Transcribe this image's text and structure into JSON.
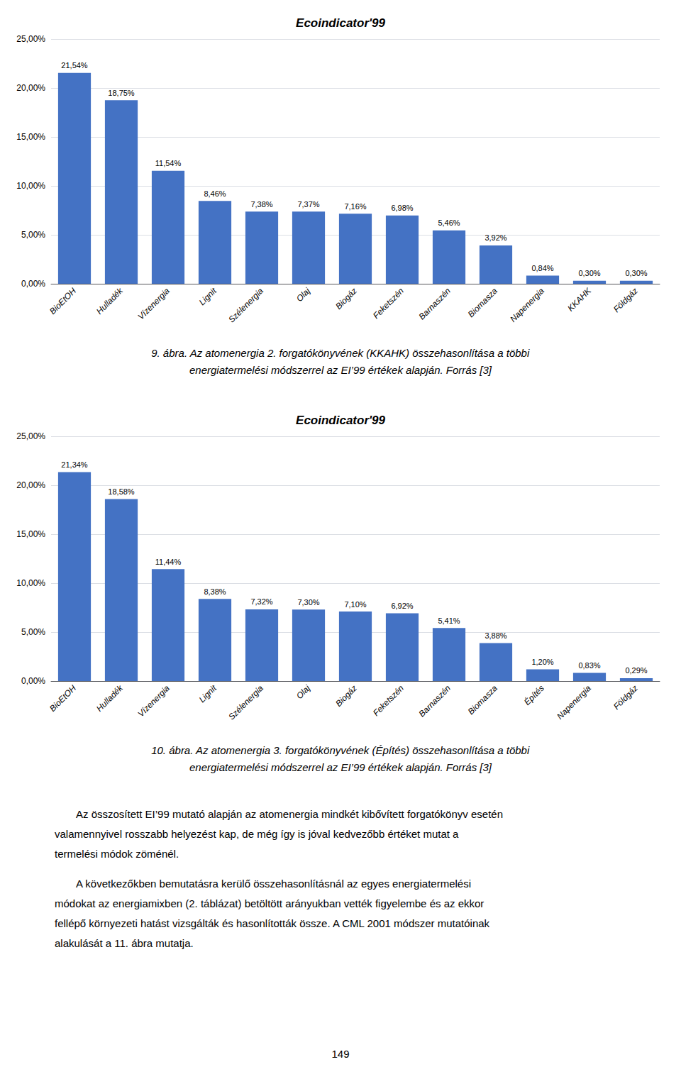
{
  "chart_data": [
    {
      "type": "bar",
      "title": "Ecoindicator'99",
      "categories": [
        "BioEtOH",
        "Hulladék",
        "Vízenergia",
        "Lignit",
        "Szélenergia",
        "Olaj",
        "Biogáz",
        "Feketszén",
        "Barnaszén",
        "Biomasza",
        "Napenergia",
        "KKAHK",
        "Földgáz"
      ],
      "values": [
        21.54,
        18.75,
        11.54,
        8.46,
        7.38,
        7.37,
        7.16,
        6.98,
        5.46,
        3.92,
        0.84,
        0.3,
        0.3
      ],
      "value_labels": [
        "21,54%",
        "18,75%",
        "11,54%",
        "8,46%",
        "7,38%",
        "7,37%",
        "7,16%",
        "6,98%",
        "5,46%",
        "3,92%",
        "0,84%",
        "0,30%",
        "0,30%"
      ],
      "data_labels": true,
      "color": "#4472C4",
      "ylim": [
        0,
        25
      ],
      "yticks": [
        {
          "value": 0,
          "label": "0,00%"
        },
        {
          "value": 5,
          "label": "5,00%"
        },
        {
          "value": 10,
          "label": "10,00%"
        },
        {
          "value": 15,
          "label": "15,00%"
        },
        {
          "value": 20,
          "label": "20,00%"
        },
        {
          "value": 25,
          "label": "25,00%"
        }
      ],
      "grid": true,
      "annotations": [
        "9. ábra. Az atomenergia 2. forgatókönyvének (KKAHK) összehasonlítása a többi",
        "energiatermelési módszerrel az EI’99 értékek alapján. Forrás [3]"
      ]
    },
    {
      "type": "bar",
      "title": "Ecoindicator'99",
      "categories": [
        "BioEtOH",
        "Hulladék",
        "Vízenergia",
        "Lignit",
        "Szélenergia",
        "Olaj",
        "Biogáz",
        "Feketszén",
        "Barnaszén",
        "Biomasza",
        "Építés",
        "Napenergia",
        "Földgáz"
      ],
      "values": [
        21.34,
        18.58,
        11.44,
        8.38,
        7.32,
        7.3,
        7.1,
        6.92,
        5.41,
        3.88,
        1.2,
        0.83,
        0.29
      ],
      "value_labels": [
        "21,34%",
        "18,58%",
        "11,44%",
        "8,38%",
        "7,32%",
        "7,30%",
        "7,10%",
        "6,92%",
        "5,41%",
        "3,88%",
        "1,20%",
        "0,83%",
        "0,29%"
      ],
      "data_labels": true,
      "color": "#4472C4",
      "ylim": [
        0,
        25
      ],
      "yticks": [
        {
          "value": 0,
          "label": "0,00%"
        },
        {
          "value": 5,
          "label": "5,00%"
        },
        {
          "value": 10,
          "label": "10,00%"
        },
        {
          "value": 15,
          "label": "15,00%"
        },
        {
          "value": 20,
          "label": "20,00%"
        },
        {
          "value": 25,
          "label": "25,00%"
        }
      ],
      "grid": true,
      "annotations": [
        "10. ábra. Az atomenergia 3. forgatókönyvének (Építés) összehasonlítása a többi",
        "energiatermelési módszerrel az EI’99 értékek alapján. Forrás [3]"
      ]
    }
  ],
  "text": {
    "paragraphs": [
      [
        "Az összosített EI’99 mutató alapján az atomenergia mindkét kibővített forgatókönyv esetén",
        "valamennyivel rosszabb helyezést kap, de még így is jóval kedvezőbb értéket mutat a",
        "termelési módok zöménél."
      ],
      [
        "A következőkben bemutatásra kerülő összehasonlításnál az egyes energiatermelési",
        "módokat az energiamixben (2. táblázat) betöltött arányukban vették figyelembe és az ekkor",
        "fellépő környezeti hatást vizsgálták és hasonlították össze. A CML 2001 módszer mutatóinak",
        "alakulását a 11. ábra mutatja."
      ]
    ],
    "page_number": "149"
  }
}
